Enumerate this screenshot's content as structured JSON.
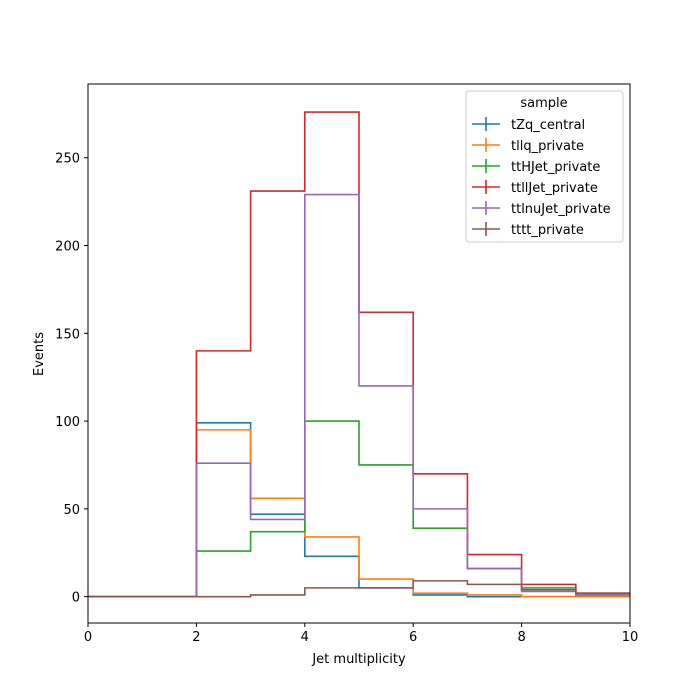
{
  "chart_data": {
    "type": "step-histogram",
    "xlabel": "Jet multiplicity",
    "ylabel": "Events",
    "xlim": [
      0,
      10
    ],
    "ylim": [
      -15,
      292
    ],
    "xticks": [
      0,
      2,
      4,
      6,
      8,
      10
    ],
    "yticks": [
      0,
      50,
      100,
      150,
      200,
      250
    ],
    "grid": false,
    "legend": {
      "title": "sample",
      "placement": "top-right"
    },
    "bin_edges": [
      0,
      1,
      2,
      3,
      4,
      5,
      6,
      7,
      8,
      9,
      10
    ],
    "series": [
      {
        "name": "tZq_central",
        "color": "#1f77b4",
        "values": [
          0,
          0,
          99,
          47,
          23,
          5,
          1,
          0,
          0,
          0
        ]
      },
      {
        "name": "tllq_private",
        "color": "#ff7f0e",
        "values": [
          0,
          0,
          95,
          56,
          34,
          10,
          2,
          1,
          0,
          0
        ]
      },
      {
        "name": "ttHJet_private",
        "color": "#2ca02c",
        "values": [
          0,
          0,
          26,
          37,
          100,
          75,
          39,
          16,
          5,
          1
        ]
      },
      {
        "name": "ttllJet_private",
        "color": "#d62728",
        "values": [
          0,
          0,
          140,
          231,
          276,
          162,
          70,
          24,
          7,
          2
        ]
      },
      {
        "name": "ttlnuJet_private",
        "color": "#9467bd",
        "values": [
          0,
          0,
          76,
          44,
          229,
          120,
          50,
          16,
          3,
          1
        ]
      },
      {
        "name": "tttt_private",
        "color": "#8c564b",
        "values": [
          0,
          0,
          0,
          1,
          5,
          5,
          9,
          7,
          4,
          2
        ]
      }
    ]
  }
}
